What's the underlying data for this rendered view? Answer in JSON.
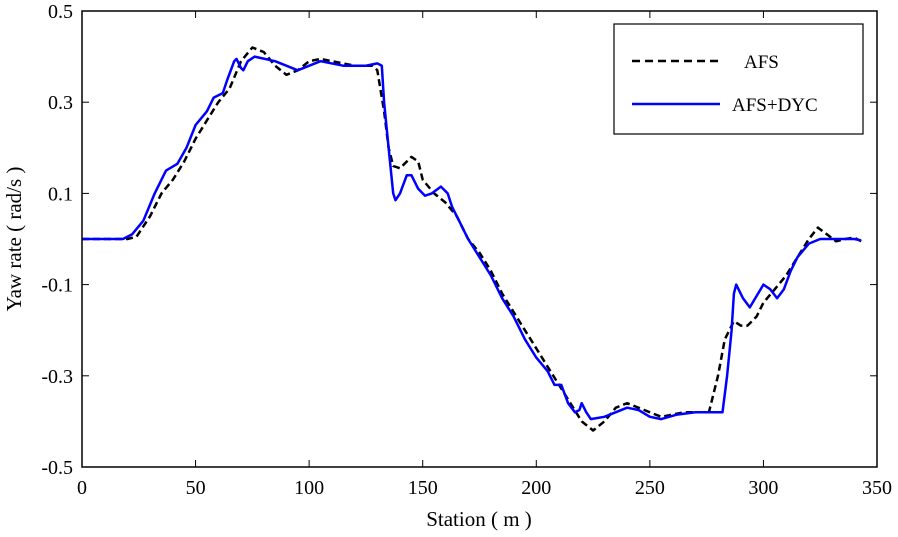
{
  "chart_data": {
    "type": "line",
    "title": "",
    "xlabel": "Station ( m )",
    "ylabel": "Yaw rate ( rad/s )",
    "xlim": [
      0,
      350
    ],
    "ylim": [
      -0.5,
      0.5
    ],
    "xticks": [
      0,
      50,
      100,
      150,
      200,
      250,
      300,
      350
    ],
    "xtick_labels": [
      "0",
      "50",
      "100",
      "150",
      "200",
      "250",
      "300",
      "350"
    ],
    "yticks": [
      -0.5,
      -0.3,
      -0.1,
      0.1,
      0.3,
      0.5
    ],
    "ytick_labels": [
      "-0.5",
      "-0.3",
      "-0.1",
      "0.1",
      "0.3",
      "0.5"
    ],
    "grid": false,
    "legend_position": "top-right",
    "series": [
      {
        "name": "AFS",
        "color": "#000000",
        "style": "dashed",
        "points": [
          [
            0,
            0
          ],
          [
            20,
            0
          ],
          [
            24,
            0.005
          ],
          [
            30,
            0.05
          ],
          [
            35,
            0.1
          ],
          [
            40,
            0.13
          ],
          [
            45,
            0.17
          ],
          [
            50,
            0.22
          ],
          [
            55,
            0.26
          ],
          [
            60,
            0.3
          ],
          [
            65,
            0.33
          ],
          [
            70,
            0.39
          ],
          [
            75,
            0.42
          ],
          [
            80,
            0.41
          ],
          [
            85,
            0.38
          ],
          [
            90,
            0.36
          ],
          [
            95,
            0.37
          ],
          [
            100,
            0.39
          ],
          [
            105,
            0.395
          ],
          [
            110,
            0.39
          ],
          [
            120,
            0.38
          ],
          [
            128,
            0.38
          ],
          [
            130,
            0.37
          ],
          [
            133,
            0.28
          ],
          [
            135,
            0.2
          ],
          [
            137,
            0.16
          ],
          [
            140,
            0.155
          ],
          [
            145,
            0.18
          ],
          [
            148,
            0.17
          ],
          [
            150,
            0.13
          ],
          [
            155,
            0.1
          ],
          [
            160,
            0.08
          ],
          [
            165,
            0.05
          ],
          [
            170,
            0.0
          ],
          [
            175,
            -0.03
          ],
          [
            180,
            -0.07
          ],
          [
            185,
            -0.12
          ],
          [
            190,
            -0.16
          ],
          [
            195,
            -0.2
          ],
          [
            200,
            -0.24
          ],
          [
            205,
            -0.28
          ],
          [
            210,
            -0.32
          ],
          [
            215,
            -0.36
          ],
          [
            220,
            -0.4
          ],
          [
            225,
            -0.42
          ],
          [
            230,
            -0.4
          ],
          [
            235,
            -0.37
          ],
          [
            240,
            -0.36
          ],
          [
            245,
            -0.37
          ],
          [
            250,
            -0.38
          ],
          [
            255,
            -0.39
          ],
          [
            260,
            -0.385
          ],
          [
            265,
            -0.38
          ],
          [
            270,
            -0.38
          ],
          [
            276,
            -0.38
          ],
          [
            280,
            -0.3
          ],
          [
            283,
            -0.22
          ],
          [
            287,
            -0.18
          ],
          [
            290,
            -0.19
          ],
          [
            293,
            -0.19
          ],
          [
            297,
            -0.17
          ],
          [
            300,
            -0.14
          ],
          [
            305,
            -0.11
          ],
          [
            310,
            -0.08
          ],
          [
            315,
            -0.04
          ],
          [
            320,
            0.0
          ],
          [
            324,
            0.025
          ],
          [
            328,
            0.01
          ],
          [
            332,
            -0.005
          ],
          [
            336,
            0.0
          ],
          [
            340,
            0.003
          ],
          [
            343,
            -0.005
          ]
        ]
      },
      {
        "name": "AFS+DYC",
        "color": "#0000ff",
        "style": "solid",
        "points": [
          [
            0,
            0
          ],
          [
            18,
            0
          ],
          [
            22,
            0.01
          ],
          [
            27,
            0.04
          ],
          [
            32,
            0.1
          ],
          [
            37,
            0.15
          ],
          [
            42,
            0.165
          ],
          [
            46,
            0.2
          ],
          [
            50,
            0.25
          ],
          [
            55,
            0.28
          ],
          [
            58,
            0.31
          ],
          [
            62,
            0.32
          ],
          [
            64,
            0.35
          ],
          [
            67,
            0.39
          ],
          [
            68,
            0.395
          ],
          [
            70,
            0.375
          ],
          [
            71,
            0.37
          ],
          [
            73,
            0.39
          ],
          [
            76,
            0.4
          ],
          [
            85,
            0.39
          ],
          [
            95,
            0.37
          ],
          [
            105,
            0.39
          ],
          [
            115,
            0.38
          ],
          [
            125,
            0.38
          ],
          [
            130,
            0.385
          ],
          [
            132,
            0.38
          ],
          [
            133,
            0.3
          ],
          [
            135,
            0.2
          ],
          [
            137,
            0.1
          ],
          [
            138,
            0.085
          ],
          [
            140,
            0.1
          ],
          [
            143,
            0.14
          ],
          [
            145,
            0.14
          ],
          [
            148,
            0.11
          ],
          [
            151,
            0.095
          ],
          [
            154,
            0.1
          ],
          [
            158,
            0.115
          ],
          [
            161,
            0.1
          ],
          [
            163,
            0.07
          ],
          [
            166,
            0.04
          ],
          [
            170,
            0.0
          ],
          [
            175,
            -0.04
          ],
          [
            180,
            -0.08
          ],
          [
            185,
            -0.13
          ],
          [
            190,
            -0.17
          ],
          [
            195,
            -0.22
          ],
          [
            200,
            -0.26
          ],
          [
            205,
            -0.29
          ],
          [
            208,
            -0.32
          ],
          [
            211,
            -0.32
          ],
          [
            214,
            -0.36
          ],
          [
            217,
            -0.38
          ],
          [
            219,
            -0.375
          ],
          [
            220,
            -0.36
          ],
          [
            222,
            -0.38
          ],
          [
            224,
            -0.395
          ],
          [
            230,
            -0.39
          ],
          [
            240,
            -0.37
          ],
          [
            245,
            -0.375
          ],
          [
            250,
            -0.39
          ],
          [
            255,
            -0.395
          ],
          [
            262,
            -0.385
          ],
          [
            270,
            -0.38
          ],
          [
            278,
            -0.38
          ],
          [
            282,
            -0.38
          ],
          [
            284,
            -0.3
          ],
          [
            286,
            -0.2
          ],
          [
            287,
            -0.12
          ],
          [
            288,
            -0.1
          ],
          [
            291,
            -0.13
          ],
          [
            294,
            -0.15
          ],
          [
            297,
            -0.125
          ],
          [
            300,
            -0.1
          ],
          [
            303,
            -0.11
          ],
          [
            306,
            -0.13
          ],
          [
            309,
            -0.11
          ],
          [
            312,
            -0.07
          ],
          [
            315,
            -0.04
          ],
          [
            320,
            -0.01
          ],
          [
            325,
            0.0
          ],
          [
            330,
            0.0
          ],
          [
            335,
            0.0
          ],
          [
            340,
            0.0
          ],
          [
            343,
            -0.003
          ]
        ]
      }
    ]
  }
}
